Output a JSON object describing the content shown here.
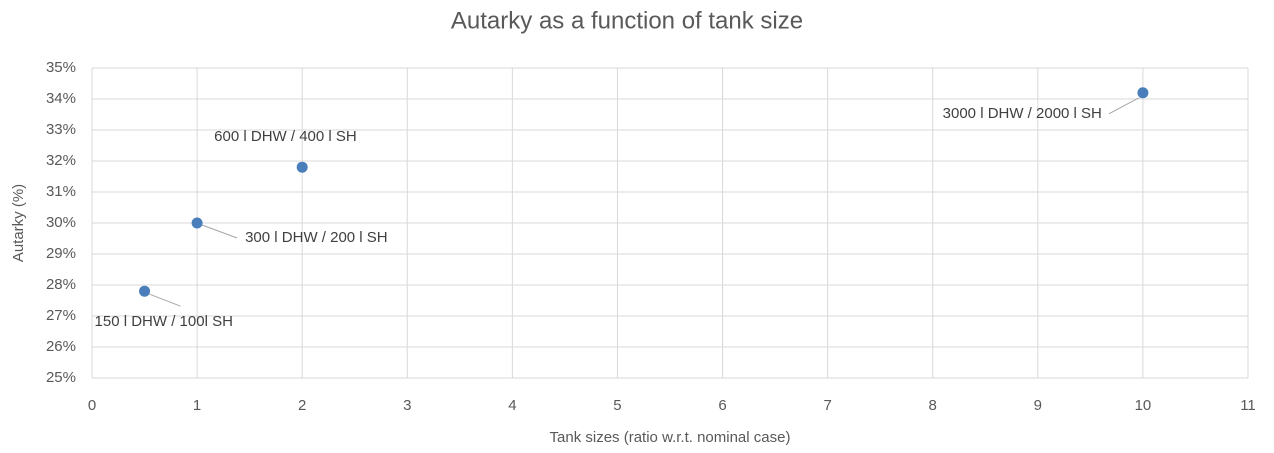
{
  "chart_data": {
    "type": "scatter",
    "title": "Autarky as a function of tank size",
    "x_label": "Tank sizes (ratio w.r.t. nominal case)",
    "y_label": "Autarky (%)",
    "x": [
      0.5,
      1,
      2,
      10
    ],
    "values": [
      27.8,
      30.0,
      31.8,
      34.2
    ],
    "point_labels": [
      "150 l DHW / 100l SH",
      "300 l DHW / 200 l SH",
      "600 l DHW / 400 l SH",
      "3000 l DHW / 2000 l SH"
    ],
    "color": "#4a7ebb",
    "xlim": [
      0,
      11
    ],
    "xticks": [
      0,
      1,
      2,
      3,
      4,
      5,
      6,
      7,
      8,
      9,
      10,
      11
    ],
    "ylim": [
      25,
      35
    ],
    "yticks": [
      {
        "value": 25,
        "label": "25%"
      },
      {
        "value": 26,
        "label": "26%"
      },
      {
        "value": 27,
        "label": "27%"
      },
      {
        "value": 28,
        "label": "28%"
      },
      {
        "value": 29,
        "label": "29%"
      },
      {
        "value": 30,
        "label": "30%"
      },
      {
        "value": 31,
        "label": "31%"
      },
      {
        "value": 32,
        "label": "32%"
      },
      {
        "value": 33,
        "label": "33%"
      },
      {
        "value": 34,
        "label": "34%"
      },
      {
        "value": 35,
        "label": "35%"
      }
    ],
    "grid": true
  }
}
